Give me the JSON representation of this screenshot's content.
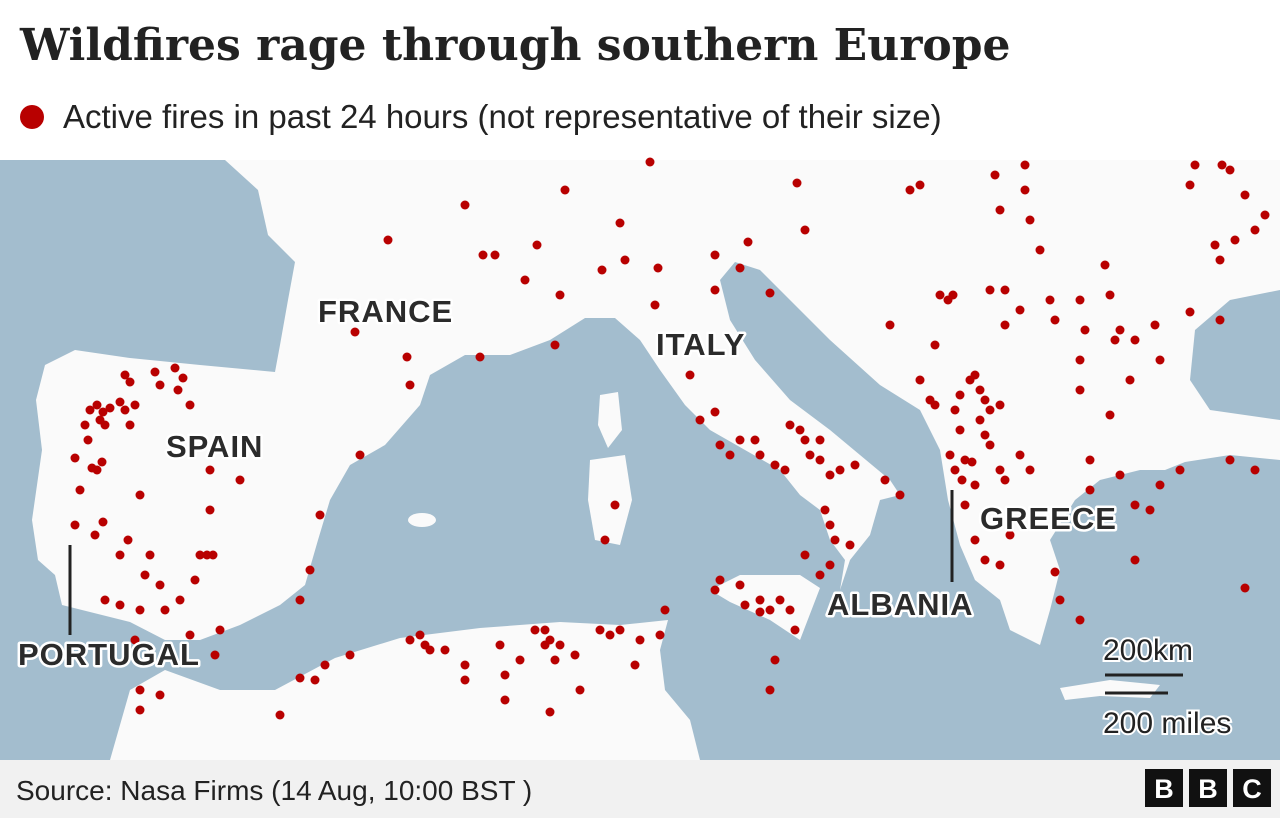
{
  "header": {
    "title": "Wildfires rage through southern Europe",
    "legend": "Active fires in past 24 hours (not representative of their size)"
  },
  "map": {
    "labels": [
      "FRANCE",
      "ITALY",
      "SPAIN",
      "GREECE",
      "ALBANIA",
      "PORTUGAL"
    ]
  },
  "scale": {
    "km": "200km",
    "miles": "200 miles"
  },
  "footer": {
    "source": "Source: Nasa Firms (14 Aug, 10:00 BST )",
    "logo": [
      "B",
      "B",
      "C"
    ]
  }
}
